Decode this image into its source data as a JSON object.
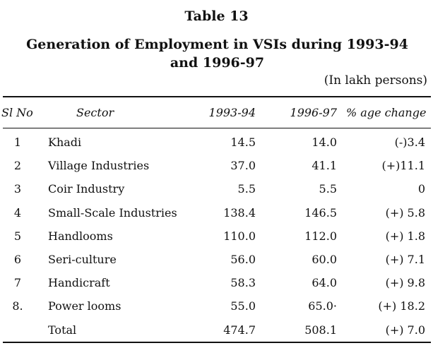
{
  "table_number": "Table 13",
  "title": "Generation of Employment in VSIs during 1993-94 and 1996-97",
  "unit_note": "(In lakh persons)",
  "headers": {
    "sl_no": "Sl No",
    "sector": "Sector",
    "year1": "1993-94",
    "year2": "1996-97",
    "change": "% age change"
  },
  "rows": [
    {
      "sl": "1",
      "sector": "Khadi",
      "y1": "14.5",
      "y2": "14.0",
      "change": "(-)3.4"
    },
    {
      "sl": "2",
      "sector": "Village Industries",
      "y1": "37.0",
      "y2": "41.1",
      "change": "(+)11.1"
    },
    {
      "sl": "3",
      "sector": "Coir Industry",
      "y1": "5.5",
      "y2": "5.5",
      "change": "0"
    },
    {
      "sl": "4",
      "sector": "Small-Scale Industries",
      "y1": "138.4",
      "y2": "146.5",
      "change": "(+) 5.8"
    },
    {
      "sl": "5",
      "sector": "Handlooms",
      "y1": "110.0",
      "y2": "112.0",
      "change": "(+) 1.8"
    },
    {
      "sl": "6",
      "sector": "Seri-culture",
      "y1": "56.0",
      "y2": "60.0",
      "change": "(+) 7.1"
    },
    {
      "sl": "7",
      "sector": "Handicraft",
      "y1": "58.3",
      "y2": "64.0",
      "change": "(+) 9.8"
    },
    {
      "sl": "8.",
      "sector": "Power looms",
      "y1": "55.0",
      "y2": "65.0·",
      "change": "(+) 18.2"
    },
    {
      "sl": "",
      "sector": "Total",
      "y1": "474.7",
      "y2": "508.1",
      "change": "(+) 7.0"
    }
  ]
}
